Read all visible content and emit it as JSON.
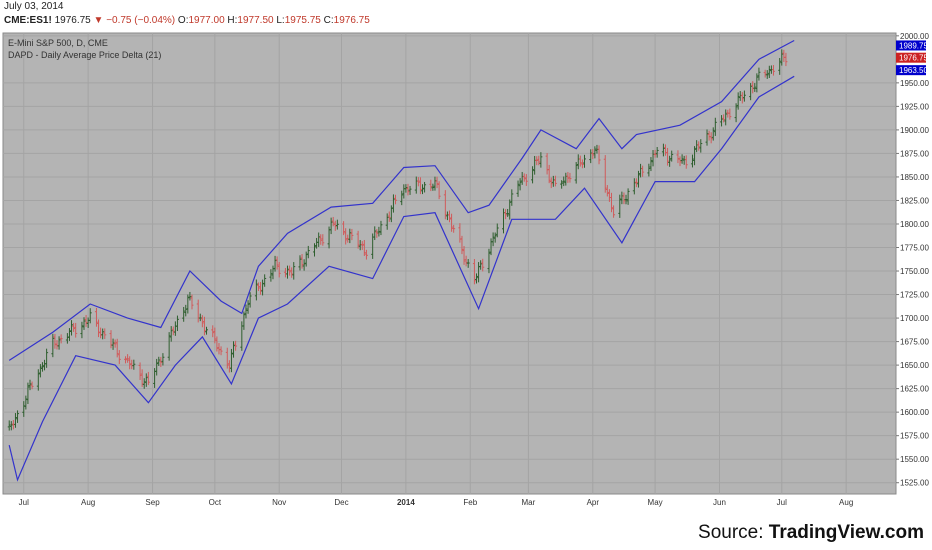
{
  "header": {
    "date": "July 03, 2014",
    "symbol": "CME:ES1!",
    "last": "1976.75",
    "change": "▼ −0.75 (−0.04%)",
    "open_label": "O:",
    "open": "1977.00",
    "high_label": "H:",
    "high": "1977.50",
    "low_label": "L:",
    "low": "1975.75",
    "close_label": "C:",
    "close": "1976.75"
  },
  "chart_title": "E-Mini S&P 500, D, CME",
  "indicator_title": "DAPD - Daily Average Price Delta (21)",
  "source_prefix": "Source: ",
  "source_name": "TradingView.com",
  "colors": {
    "plot_bg": "#b4b4b4",
    "grid": "#a4a4a4",
    "band": "#3333cc",
    "up_bar": "#2e5e2e",
    "down_bar": "#d05a5a",
    "marker_blue": "#0000cc",
    "marker_red": "#cc2222"
  },
  "chart_data": {
    "type": "ohlc",
    "x_ticks": [
      "Jul",
      "Aug",
      "Sep",
      "Oct",
      "Nov",
      "Dec",
      "2014",
      "Feb",
      "Mar",
      "Apr",
      "May",
      "Jun",
      "Jul",
      "Aug"
    ],
    "y_ticks": [
      "1525.00",
      "1550.00",
      "1575.00",
      "1600.00",
      "1625.00",
      "1650.00",
      "1675.00",
      "1700.00",
      "1725.00",
      "1750.00",
      "1775.00",
      "1800.00",
      "1825.00",
      "1850.00",
      "1875.00",
      "1900.00",
      "1925.00",
      "1950.00",
      "2000.00"
    ],
    "ylim": [
      1513,
      2003
    ],
    "close_anchors": [
      [
        "2013-06-24",
        1580
      ],
      [
        "2013-07-05",
        1630
      ],
      [
        "2013-07-15",
        1672
      ],
      [
        "2013-08-02",
        1700
      ],
      [
        "2013-08-15",
        1665
      ],
      [
        "2013-08-30",
        1630
      ],
      [
        "2013-09-18",
        1720
      ],
      [
        "2013-10-08",
        1650
      ],
      [
        "2013-10-17",
        1718
      ],
      [
        "2013-10-30",
        1755
      ],
      [
        "2013-11-07",
        1748
      ],
      [
        "2013-11-27",
        1800
      ],
      [
        "2013-12-13",
        1772
      ],
      [
        "2013-12-31",
        1838
      ],
      [
        "2014-01-15",
        1842
      ],
      [
        "2014-02-03",
        1740
      ],
      [
        "2014-02-24",
        1842
      ],
      [
        "2014-03-07",
        1870
      ],
      [
        "2014-03-14",
        1838
      ],
      [
        "2014-04-02",
        1880
      ],
      [
        "2014-04-11",
        1812
      ],
      [
        "2014-05-02",
        1878
      ],
      [
        "2014-05-15",
        1865
      ],
      [
        "2014-06-20",
        1955
      ],
      [
        "2014-07-03",
        1977
      ]
    ],
    "upper_band": [
      [
        "2013-06-24",
        1655
      ],
      [
        "2013-07-15",
        1685
      ],
      [
        "2013-08-02",
        1715
      ],
      [
        "2013-08-20",
        1700
      ],
      [
        "2013-09-05",
        1690
      ],
      [
        "2013-09-19",
        1750
      ],
      [
        "2013-10-04",
        1718
      ],
      [
        "2013-10-14",
        1705
      ],
      [
        "2013-10-22",
        1755
      ],
      [
        "2013-11-05",
        1790
      ],
      [
        "2013-11-26",
        1818
      ],
      [
        "2013-12-16",
        1822
      ],
      [
        "2013-12-31",
        1860
      ],
      [
        "2014-01-15",
        1862
      ],
      [
        "2014-01-31",
        1812
      ],
      [
        "2014-02-10",
        1820
      ],
      [
        "2014-02-26",
        1870
      ],
      [
        "2014-03-07",
        1900
      ],
      [
        "2014-03-24",
        1880
      ],
      [
        "2014-04-04",
        1912
      ],
      [
        "2014-04-15",
        1880
      ],
      [
        "2014-04-22",
        1895
      ],
      [
        "2014-05-13",
        1905
      ],
      [
        "2014-06-02",
        1930
      ],
      [
        "2014-06-20",
        1975
      ],
      [
        "2014-07-07",
        1995
      ]
    ],
    "lower_band": [
      [
        "2013-06-24",
        1565
      ],
      [
        "2013-06-28",
        1528
      ],
      [
        "2013-07-10",
        1590
      ],
      [
        "2013-07-26",
        1660
      ],
      [
        "2013-08-14",
        1650
      ],
      [
        "2013-08-30",
        1610
      ],
      [
        "2013-09-12",
        1650
      ],
      [
        "2013-09-25",
        1680
      ],
      [
        "2013-10-09",
        1630
      ],
      [
        "2013-10-22",
        1700
      ],
      [
        "2013-11-05",
        1715
      ],
      [
        "2013-11-25",
        1755
      ],
      [
        "2013-12-16",
        1742
      ],
      [
        "2013-12-31",
        1808
      ],
      [
        "2014-01-15",
        1812
      ],
      [
        "2014-02-05",
        1710
      ],
      [
        "2014-02-21",
        1805
      ],
      [
        "2014-03-14",
        1805
      ],
      [
        "2014-03-28",
        1838
      ],
      [
        "2014-04-15",
        1780
      ],
      [
        "2014-05-01",
        1845
      ],
      [
        "2014-05-20",
        1845
      ],
      [
        "2014-06-02",
        1880
      ],
      [
        "2014-06-20",
        1935
      ],
      [
        "2014-07-07",
        1957
      ]
    ],
    "price_markers": [
      {
        "label": "1989.75",
        "value": 1989.75,
        "color": "#0000cc"
      },
      {
        "label": "1976.75",
        "value": 1976.75,
        "color": "#cc2222"
      },
      {
        "label": "1963.50",
        "value": 1963.5,
        "color": "#0000cc"
      }
    ]
  }
}
